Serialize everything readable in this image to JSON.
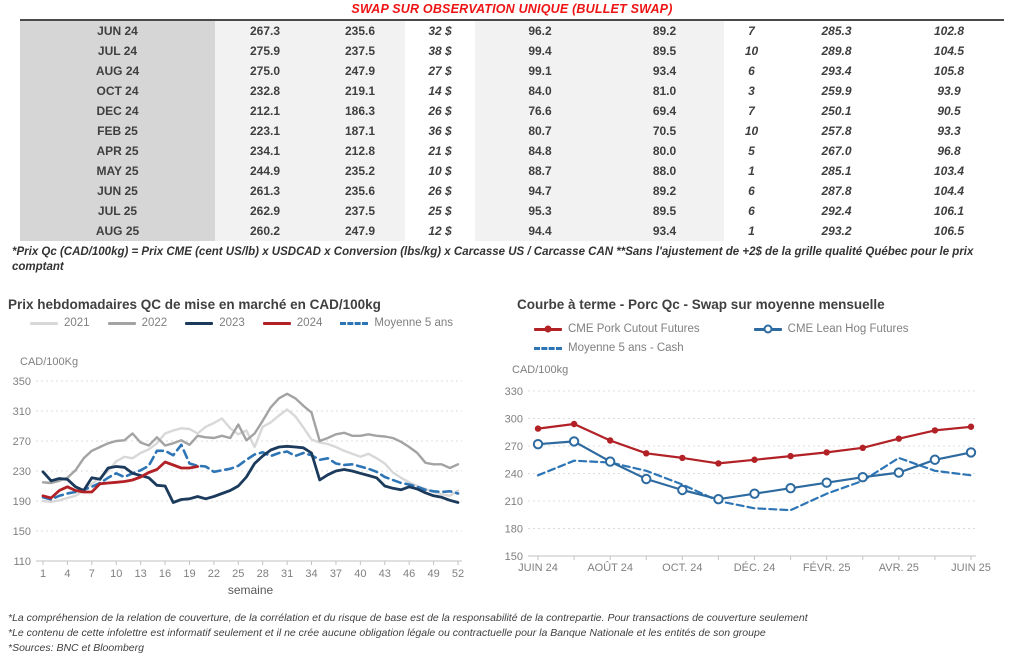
{
  "table": {
    "title": "SWAP SUR OBSERVATION UNIQUE (BULLET SWAP)",
    "title_color": "#ee1414",
    "positive_color": "#00a651",
    "futures_color": "#1f6391",
    "rows": [
      [
        "JUN 24",
        "267.3",
        "235.6",
        "32 $",
        "96.2",
        "89.2",
        "7",
        "285.3",
        "102.8"
      ],
      [
        "JUL 24",
        "275.9",
        "237.5",
        "38 $",
        "99.4",
        "89.5",
        "10",
        "289.8",
        "104.5"
      ],
      [
        "AUG 24",
        "275.0",
        "247.9",
        "27 $",
        "99.1",
        "93.4",
        "6",
        "293.4",
        "105.8"
      ],
      [
        "OCT 24",
        "232.8",
        "219.1",
        "14 $",
        "84.0",
        "81.0",
        "3",
        "259.9",
        "93.9"
      ],
      [
        "DEC 24",
        "212.1",
        "186.3",
        "26 $",
        "76.6",
        "69.4",
        "7",
        "250.1",
        "90.5"
      ],
      [
        "FEB 25",
        "223.1",
        "187.1",
        "36 $",
        "80.7",
        "70.5",
        "10",
        "257.8",
        "93.3"
      ],
      [
        "APR 25",
        "234.1",
        "212.8",
        "21 $",
        "84.8",
        "80.0",
        "5",
        "267.0",
        "96.8"
      ],
      [
        "MAY 25",
        "244.9",
        "235.2",
        "10 $",
        "88.7",
        "88.0",
        "1",
        "285.1",
        "103.4"
      ],
      [
        "JUN 25",
        "261.3",
        "235.6",
        "26 $",
        "94.7",
        "89.2",
        "6",
        "287.8",
        "104.4"
      ],
      [
        "JUL 25",
        "262.9",
        "237.5",
        "25 $",
        "95.3",
        "89.5",
        "6",
        "292.4",
        "106.1"
      ],
      [
        "AUG 25",
        "260.2",
        "247.9",
        "12 $",
        "94.4",
        "93.4",
        "1",
        "293.2",
        "106.5"
      ]
    ],
    "note": "*Prix Qc (CAD/100kg) = Prix CME (cent US/lb) x USDCAD x Conversion (lbs/kg) x Carcasse US / Carcasse CAN **Sans l'ajustement de +2$ de la grille qualité Québec pour le prix comptant"
  },
  "chart_data": [
    {
      "type": "line",
      "title": "Prix hebdomadaires QC de mise en marché en CAD/100kg",
      "ylabel": "CAD/100Kg",
      "xlabel": "semaine",
      "ylim": [
        110,
        350
      ],
      "yticks": [
        110,
        150,
        190,
        230,
        270,
        310,
        350
      ],
      "x_range": [
        1,
        52
      ],
      "xticks": [
        1,
        4,
        7,
        10,
        13,
        16,
        19,
        22,
        25,
        28,
        31,
        34,
        37,
        40,
        43,
        46,
        49,
        52
      ],
      "grid": "dashed-horizontal",
      "legend_position": "top",
      "series": [
        {
          "name": "2021",
          "color": "#d8d8d8",
          "values": [
            190,
            189,
            191,
            194,
            197,
            204,
            213,
            221,
            230,
            243,
            249,
            247,
            254,
            259,
            267,
            280,
            284,
            287,
            286,
            280,
            289,
            294,
            300,
            287,
            279,
            284,
            262,
            289,
            295,
            304,
            312,
            303,
            288,
            272,
            268,
            266,
            262,
            257,
            253,
            249,
            253,
            247,
            240,
            228,
            221,
            215,
            210,
            206,
            202,
            199,
            197,
            204
          ]
        },
        {
          "name": "2022",
          "color": "#a3a3a3",
          "values": [
            215,
            214,
            217,
            221,
            231,
            247,
            257,
            262,
            267,
            270,
            271,
            280,
            268,
            264,
            275,
            264,
            267,
            271,
            265,
            277,
            275,
            274,
            277,
            274,
            292,
            271,
            280,
            297,
            315,
            327,
            333,
            327,
            317,
            308,
            270,
            274,
            279,
            281,
            277,
            277,
            279,
            277,
            276,
            274,
            269,
            262,
            254,
            241,
            239,
            239,
            234,
            239
          ]
        },
        {
          "name": "2023",
          "color": "#1b3a5c",
          "values": [
            229,
            217,
            220,
            219,
            209,
            204,
            221,
            219,
            234,
            236,
            235,
            227,
            224,
            221,
            211,
            210,
            188,
            192,
            193,
            196,
            193,
            196,
            200,
            204,
            210,
            222,
            240,
            250,
            258,
            262,
            263,
            262,
            261,
            254,
            218,
            225,
            230,
            232,
            230,
            227,
            224,
            221,
            210,
            207,
            205,
            209,
            206,
            201,
            197,
            195,
            191,
            188
          ]
        },
        {
          "name": "2024",
          "color": "#b22126",
          "values": [
            197,
            194,
            204,
            209,
            204,
            202,
            202,
            213,
            214,
            215,
            216,
            218,
            222,
            228,
            232,
            242,
            238,
            234,
            234,
            236
          ]
        },
        {
          "name": "Moyenne 5 ans",
          "color": "#2e75b6",
          "dash": true,
          "values": [
            195,
            192,
            197,
            200,
            202,
            205,
            209,
            214,
            221,
            227,
            222,
            227,
            231,
            237,
            257,
            257,
            251,
            265,
            240,
            237,
            236,
            229,
            231,
            233,
            237,
            245,
            252,
            255,
            250,
            254,
            256,
            250,
            254,
            251,
            245,
            247,
            240,
            238,
            239,
            236,
            233,
            229,
            222,
            218,
            214,
            212,
            209,
            205,
            203,
            202,
            203,
            200
          ]
        }
      ]
    },
    {
      "type": "line",
      "title": "Courbe à terme - Porc Qc - Swap sur moyenne mensuelle",
      "ylabel": "CAD/100kg",
      "ylim": [
        150,
        330
      ],
      "yticks": [
        150,
        180,
        210,
        240,
        270,
        300,
        330
      ],
      "categories": [
        "JUIN 24",
        "",
        "AOÛT 24",
        "",
        "OCT. 24",
        "",
        "DÉC. 24",
        "",
        "FÉVR. 25",
        "",
        "AVR. 25",
        "",
        "JUIN 25"
      ],
      "grid": "dashed-horizontal",
      "legend_position": "top",
      "series": [
        {
          "name": "CME Pork Cutout Futures",
          "color": "#b22126",
          "marker": "filled",
          "values": [
            289,
            294,
            276,
            262,
            257,
            251,
            255,
            259,
            263,
            268,
            278,
            287,
            291
          ]
        },
        {
          "name": "CME Lean Hog Futures",
          "color": "#2d6a9f",
          "marker": "open",
          "values": [
            272,
            275,
            253,
            234,
            222,
            212,
            218,
            224,
            230,
            236,
            241,
            255,
            263
          ]
        },
        {
          "name": "Moyenne 5 ans - Cash",
          "color": "#2e75b6",
          "dash": true,
          "values": [
            238,
            254,
            252,
            243,
            228,
            210,
            202,
            200,
            218,
            232,
            257,
            243,
            238
          ]
        }
      ]
    }
  ],
  "footnotes": {
    "line1": "*La compréhension de la relation de couverture, de la corrélation et du risque de base est de la responsabilité de la contrepartie. Pour transactions de couverture seulement",
    "line2": "*Le contenu de cette infolettre est informatif seulement et il ne crée aucune obligation légale ou contractuelle pour la Banque Nationale et les entités de son groupe",
    "line3": "*Sources: BNC et Bloomberg"
  }
}
